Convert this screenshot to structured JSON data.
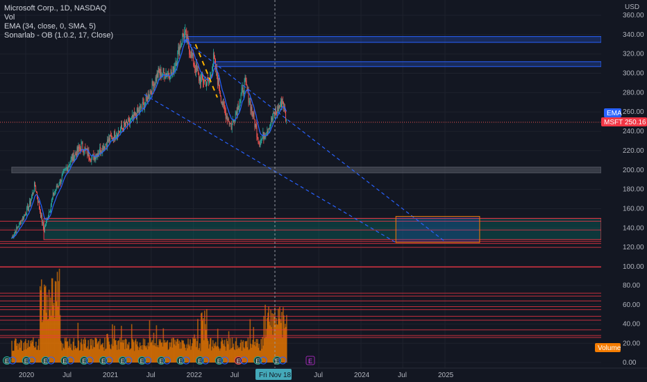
{
  "legend": {
    "title": "Microsoft Corp., 1D, NASDAQ",
    "vol": "Vol",
    "ema": "EMA (34, close, 0, SMA, 5)",
    "ob": "Sonarlab - OB (1.0.2, 17, Close)"
  },
  "price_axis": {
    "currency": "USD",
    "ticks": [
      "360.00",
      "340.00",
      "320.00",
      "300.00",
      "280.00",
      "260.00",
      "240.00",
      "220.00",
      "200.00",
      "180.00",
      "160.00",
      "140.00",
      "120.00",
      "100.00",
      "80.00",
      "60.00",
      "40.00",
      "20.00",
      "0.00"
    ]
  },
  "badges": {
    "ema": "EMA",
    "symbol": "MSFT",
    "last_price": "250.16",
    "volume": "Volume"
  },
  "time_axis": {
    "labels": [
      "2020",
      "Jul",
      "2021",
      "Jul",
      "2022",
      "Jul",
      "Jul",
      "2024",
      "Jul",
      "2025"
    ],
    "cursor_label": "Fri Nov 18"
  },
  "colors": {
    "background": "#131722",
    "up": "#26a69a",
    "down": "#ef5350",
    "ema_line": "#2962ff",
    "volume": "#f57c00",
    "trendline": "#2962ff",
    "zone_blue": "#2962ff",
    "zone_red": "#f23645",
    "projection_box": "#f57c00",
    "impulse_dash": "#ffb300"
  },
  "chart_data": {
    "type": "candlestick",
    "symbol": "MSFT",
    "interval": "1D",
    "last_price": 250.16,
    "y_range": [
      0,
      360
    ],
    "price_path": [
      [
        "2019-11-01",
        130
      ],
      [
        "2020-01-15",
        162
      ],
      [
        "2020-02-10",
        185
      ],
      [
        "2020-03-20",
        137
      ],
      [
        "2020-05-01",
        175
      ],
      [
        "2020-07-15",
        210
      ],
      [
        "2020-09-01",
        225
      ],
      [
        "2020-10-15",
        212
      ],
      [
        "2021-01-15",
        235
      ],
      [
        "2021-04-01",
        250
      ],
      [
        "2021-06-01",
        268
      ],
      [
        "2021-08-01",
        300
      ],
      [
        "2021-10-01",
        300
      ],
      [
        "2021-11-20",
        343
      ],
      [
        "2022-01-25",
        295
      ],
      [
        "2022-03-10",
        290
      ],
      [
        "2022-03-29",
        315
      ],
      [
        "2022-05-10",
        265
      ],
      [
        "2022-06-15",
        245
      ],
      [
        "2022-08-15",
        290
      ],
      [
        "2022-10-15",
        228
      ],
      [
        "2022-11-18",
        242
      ],
      [
        "2022-12-15",
        255
      ],
      [
        "2023-01-25",
        272
      ],
      [
        "2023-02-10",
        250
      ]
    ],
    "ema": {
      "period": 34,
      "source": "close",
      "smoothing": "SMA",
      "smoothing_length": 5
    },
    "volume_scale": [
      0,
      100
    ],
    "zones": [
      {
        "type": "order_block",
        "color": "blue",
        "from": 332,
        "to": 338,
        "start": "2021-11-20"
      },
      {
        "type": "order_block",
        "color": "blue",
        "from": 307,
        "to": 312,
        "start": "2022-03-29"
      },
      {
        "type": "order_block",
        "color": "gray",
        "from": 197,
        "to": 203,
        "start": "2019-11-01"
      },
      {
        "type": "order_block",
        "color": "red",
        "from": 128,
        "to": 150,
        "start": "2020-03-20"
      }
    ],
    "price_lines": [
      147,
      138,
      126,
      124,
      120,
      100,
      99,
      72,
      69,
      64,
      58,
      55,
      48,
      44,
      34,
      28,
      26
    ],
    "trendlines": [
      {
        "style": "dashed",
        "from": [
          "2021-11-20",
          335
        ],
        "to": [
          "2025-01-01",
          126
        ]
      },
      {
        "style": "dashed",
        "from": [
          "2021-06-01",
          278
        ],
        "to": [
          "2024-06-01",
          125
        ]
      },
      {
        "style": "dashed-yellow",
        "from": [
          "2022-01-10",
          330
        ],
        "to": [
          "2022-04-15",
          275
        ]
      }
    ],
    "projection_box": {
      "from_date": "2024-06-01",
      "to_date": "2025-06-01",
      "high": 152,
      "low": 125
    },
    "cursor_date": "2022-11-18",
    "earnings_markers": 15
  }
}
